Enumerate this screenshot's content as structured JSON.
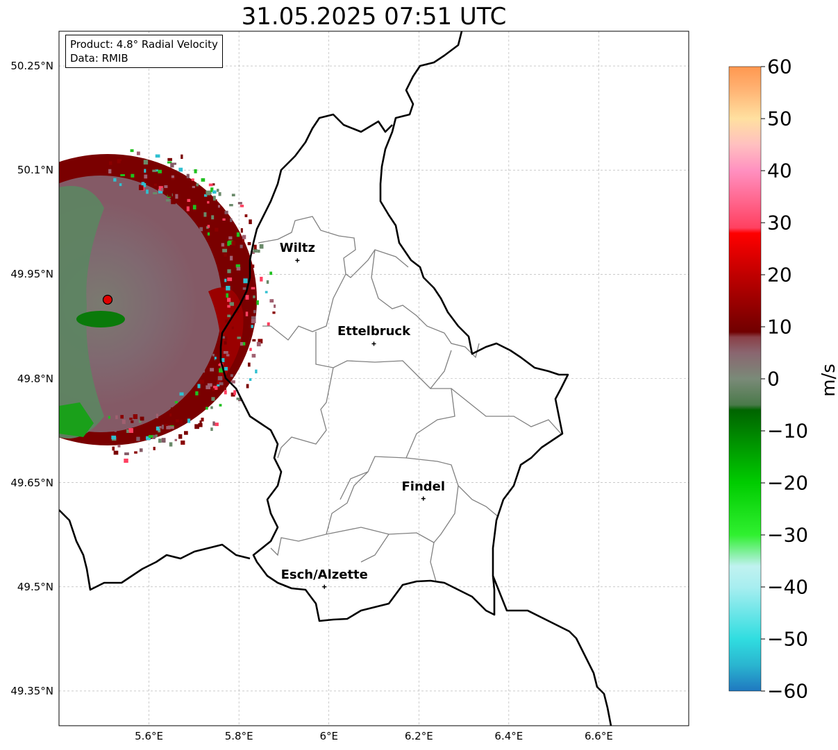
{
  "title": "31.05.2025 07:51 UTC",
  "info": {
    "product": "Product: 4.8° Radial Velocity",
    "data": "Data: RMIB"
  },
  "cities": [
    {
      "name": "Wiltz",
      "lon": 5.93,
      "lat": 49.97
    },
    {
      "name": "Ettelbruck",
      "lon": 6.1,
      "lat": 49.85
    },
    {
      "name": "Findel",
      "lon": 6.21,
      "lat": 49.627
    },
    {
      "name": "Esch/Alzette",
      "lon": 5.99,
      "lat": 49.5
    }
  ],
  "radar_site": {
    "lon": 5.505,
    "lat": 49.915
  },
  "axes": {
    "lat_ticks": [
      "50.25°N",
      "50.1°N",
      "49.95°N",
      "49.8°N",
      "49.65°N",
      "49.5°N",
      "49.35°N"
    ],
    "lon_ticks": [
      "5.6°E",
      "5.8°E",
      "6°E",
      "6.2°E",
      "6.4°E",
      "6.6°E"
    ],
    "lon_range": [
      5.4,
      6.8
    ],
    "lat_range": [
      49.3,
      50.3
    ],
    "grid": true
  },
  "colorbar": {
    "label": "m/s",
    "ticks": [
      "60",
      "50",
      "40",
      "30",
      "20",
      "10",
      "0",
      "−10",
      "−20",
      "−30",
      "−40",
      "−50",
      "−60"
    ],
    "range": [
      -60,
      60
    ],
    "stops": [
      {
        "v": -60,
        "c": "#1f78c0"
      },
      {
        "v": -55,
        "c": "#2ab5d0"
      },
      {
        "v": -50,
        "c": "#30dde0"
      },
      {
        "v": -40,
        "c": "#a8eef0"
      },
      {
        "v": -36,
        "c": "#c0f2f0"
      },
      {
        "v": -34,
        "c": "#90f0b0"
      },
      {
        "v": -30,
        "c": "#30f030"
      },
      {
        "v": -20,
        "c": "#00cc00"
      },
      {
        "v": -6,
        "c": "#006400"
      },
      {
        "v": -5,
        "c": "#4a7a4a"
      },
      {
        "v": 0,
        "c": "#7a8a78"
      },
      {
        "v": 5,
        "c": "#8a6670"
      },
      {
        "v": 8,
        "c": "#8a4048"
      },
      {
        "v": 9,
        "c": "#700000"
      },
      {
        "v": 20,
        "c": "#c00000"
      },
      {
        "v": 28,
        "c": "#ff0000"
      },
      {
        "v": 29,
        "c": "#ff4060"
      },
      {
        "v": 40,
        "c": "#ff90c0"
      },
      {
        "v": 45,
        "c": "#ffc0c0"
      },
      {
        "v": 50,
        "c": "#ffe0a0"
      },
      {
        "v": 56,
        "c": "#ffb070"
      },
      {
        "v": 60,
        "c": "#ff9850"
      }
    ]
  }
}
